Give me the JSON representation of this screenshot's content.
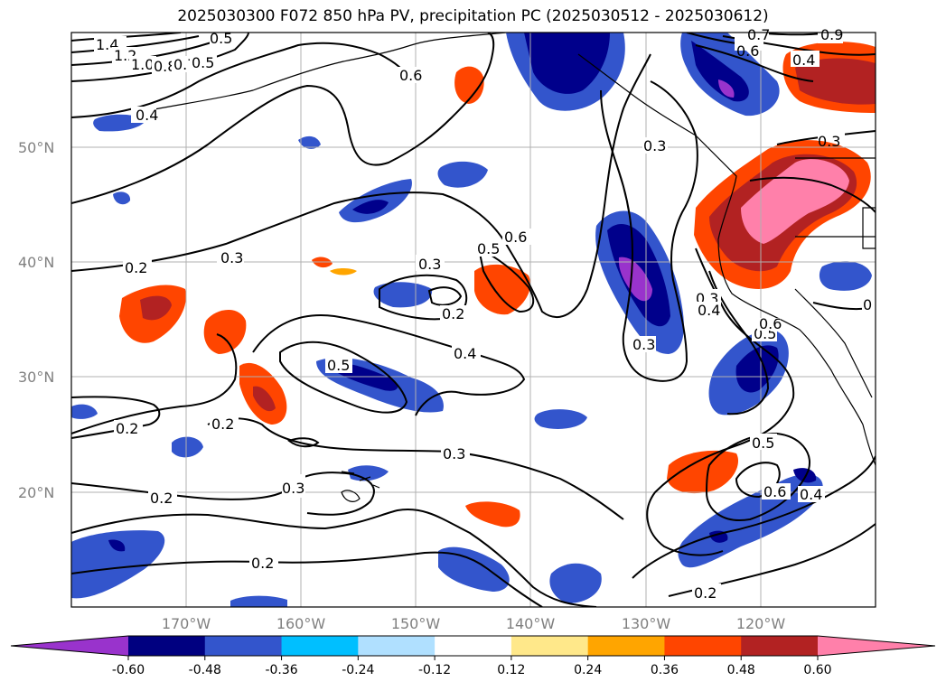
{
  "title": "2025030300 F072 850 hPa PV, precipitation PC (2025030512 - 2025030612)",
  "latitude_labels": [
    "50°N",
    "40°N",
    "30°N",
    "20°N"
  ],
  "longitude_labels": [
    "170°W",
    "160°W",
    "150°W",
    "140°W",
    "130°W",
    "120°W"
  ],
  "contour_labels": [
    "1.4",
    "1.2",
    "1.0",
    "0.8",
    "0.7",
    "0.5",
    "0.4",
    "0.6",
    "0.3",
    "0.2",
    "0.3",
    "0.5",
    "0.6",
    "0.3",
    "0.2",
    "0.5",
    "0.4",
    "0.3",
    "0.2",
    "0.2",
    "0.3",
    "0.3",
    "0.2",
    "0.2",
    "0.6",
    "0.5",
    "0.3",
    "0.4",
    "0.4",
    "0.5",
    "0.6",
    "0.4",
    "0.2",
    "0.9",
    "0.5",
    "0.6",
    "0.7",
    "0.4",
    "0.3",
    "0"
  ],
  "colorbar": {
    "ticks": [
      "-0.60",
      "-0.48",
      "-0.36",
      "-0.24",
      "-0.12",
      "0.12",
      "0.24",
      "0.36",
      "0.48",
      "0.60"
    ],
    "colors": [
      "#9933cc",
      "#000080",
      "#3355cc",
      "#00bfff",
      "#b0e0ff",
      "#ffffff",
      "#ffe88a",
      "#ffa500",
      "#ff4500",
      "#b22222",
      "#ff80aa"
    ]
  },
  "colors": {
    "purple": "#9933cc",
    "navy": "#00008b",
    "blue": "#3355cc",
    "cyan": "#00bfff",
    "yellow": "#ffe88a",
    "orange": "#ffa500",
    "redorange": "#ff4500",
    "darkred": "#b22222",
    "pink": "#ff80aa",
    "grid": "#b0b0b0",
    "axis_label": "#808080"
  }
}
